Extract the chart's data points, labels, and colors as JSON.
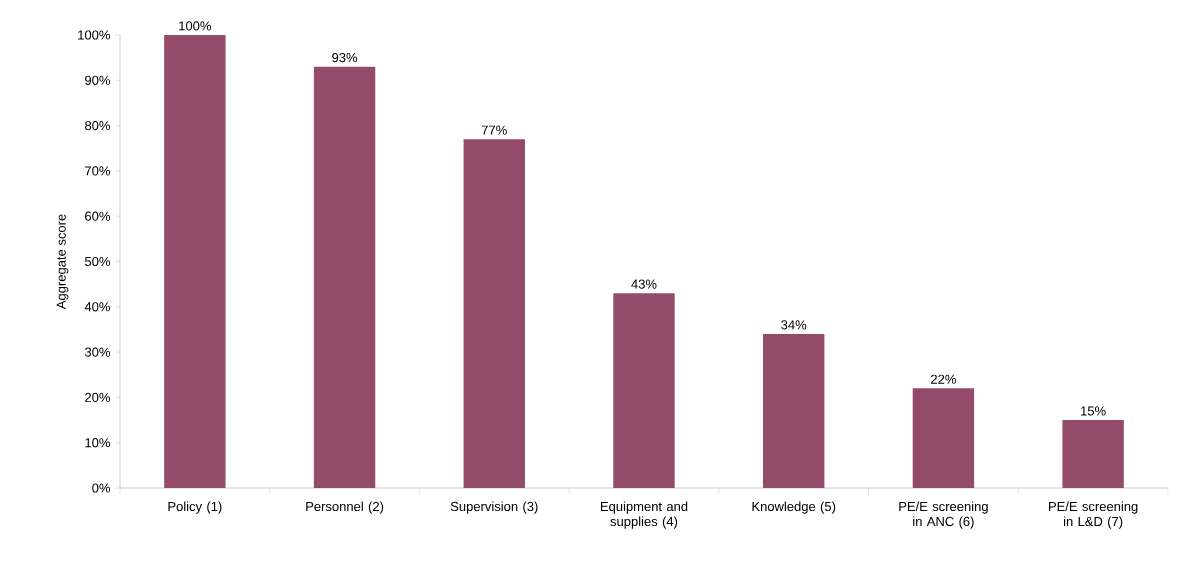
{
  "chart_data": {
    "type": "bar",
    "ylabel": "Aggregate score",
    "categories": [
      "Policy (1)",
      "Personnel (2)",
      "Supervision (3)",
      "Equipment and supplies (4)",
      "Knowledge (5)",
      "PE/E screening in ANC (6)",
      "PE/E screening in L&D (7)"
    ],
    "values": [
      100,
      93,
      77,
      43,
      34,
      22,
      15
    ],
    "value_labels": [
      "100%",
      "93%",
      "77%",
      "43%",
      "34%",
      "22%",
      "15%"
    ],
    "color": "#944a6a",
    "ylim": [
      0,
      100
    ],
    "yticks": [
      {
        "value": 0,
        "label": "0%"
      },
      {
        "value": 10,
        "label": "10%"
      },
      {
        "value": 20,
        "label": "20%"
      },
      {
        "value": 30,
        "label": "30%"
      },
      {
        "value": 40,
        "label": "40%"
      },
      {
        "value": 50,
        "label": "50%"
      },
      {
        "value": 60,
        "label": "60%"
      },
      {
        "value": 70,
        "label": "70%"
      },
      {
        "value": 80,
        "label": "80%"
      },
      {
        "value": 90,
        "label": "90%"
      },
      {
        "value": 100,
        "label": "100%"
      }
    ],
    "grid": false
  }
}
